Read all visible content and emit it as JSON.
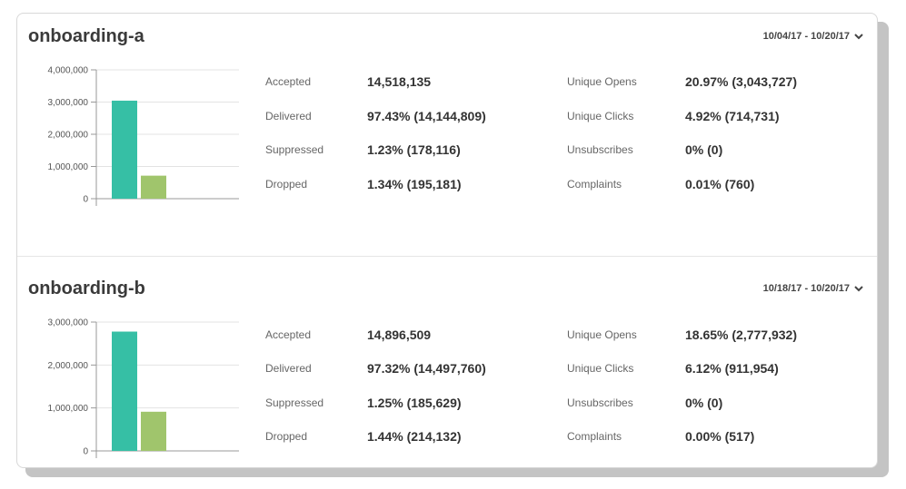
{
  "panels": [
    {
      "title": "onboarding-a",
      "date_range": "10/04/17 - 10/20/17",
      "chart_data": {
        "type": "bar",
        "categories": [
          "",
          ""
        ],
        "values": [
          3043727,
          714731
        ],
        "colors": [
          "#36bfa5",
          "#a0c56c"
        ],
        "ylim": [
          0,
          4000000
        ],
        "yticks": [
          "0",
          "1,000,000",
          "2,000,000",
          "3,000,000",
          "4,000,000"
        ],
        "grid": true
      },
      "left_stats": [
        {
          "label": "Accepted",
          "value": "14,518,135"
        },
        {
          "label": "Delivered",
          "value": "97.43% (14,144,809)"
        },
        {
          "label": "Suppressed",
          "value": "1.23% (178,116)"
        },
        {
          "label": "Dropped",
          "value": "1.34% (195,181)"
        }
      ],
      "right_stats": [
        {
          "label": "Unique Opens",
          "value": "20.97% (3,043,727)"
        },
        {
          "label": "Unique Clicks",
          "value": "4.92% (714,731)"
        },
        {
          "label": "Unsubscribes",
          "value": "0% (0)"
        },
        {
          "label": "Complaints",
          "value": "0.01% (760)"
        }
      ]
    },
    {
      "title": "onboarding-b",
      "date_range": "10/18/17 - 10/20/17",
      "chart_data": {
        "type": "bar",
        "categories": [
          "",
          ""
        ],
        "values": [
          2777932,
          911954
        ],
        "colors": [
          "#36bfa5",
          "#a0c56c"
        ],
        "ylim": [
          0,
          3000000
        ],
        "yticks": [
          "0",
          "1,000,000",
          "2,000,000",
          "3,000,000"
        ],
        "grid": true
      },
      "left_stats": [
        {
          "label": "Accepted",
          "value": "14,896,509"
        },
        {
          "label": "Delivered",
          "value": "97.32% (14,497,760)"
        },
        {
          "label": "Suppressed",
          "value": "1.25% (185,629)"
        },
        {
          "label": "Dropped",
          "value": "1.44% (214,132)"
        }
      ],
      "right_stats": [
        {
          "label": "Unique Opens",
          "value": "18.65% (2,777,932)"
        },
        {
          "label": "Unique Clicks",
          "value": "6.12% (911,954)"
        },
        {
          "label": "Unsubscribes",
          "value": "0% (0)"
        },
        {
          "label": "Complaints",
          "value": "0.00% (517)"
        }
      ]
    }
  ],
  "icons": {
    "date_toggle": "chevron-down-icon"
  }
}
